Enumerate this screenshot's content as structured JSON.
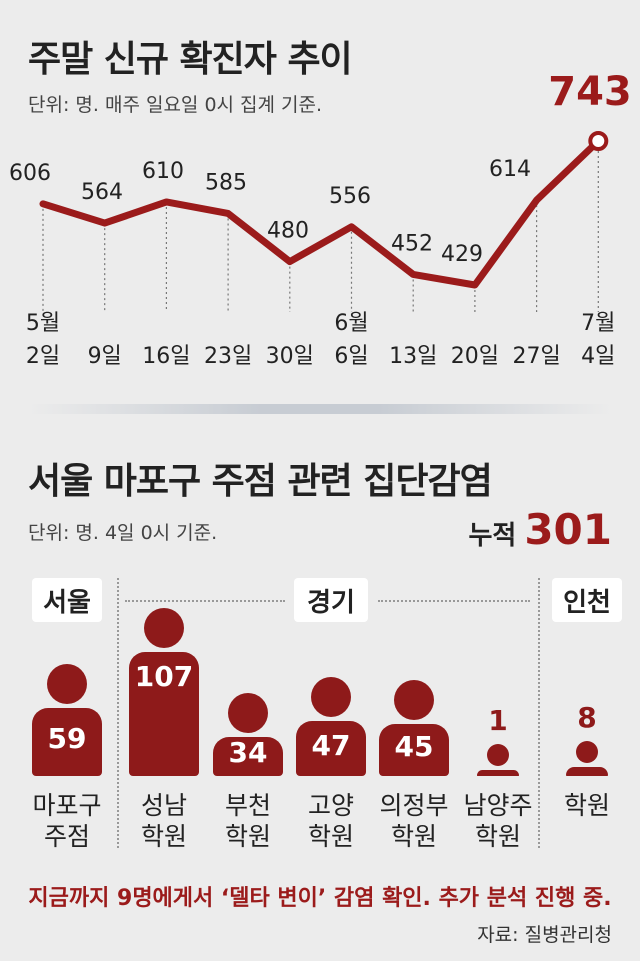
{
  "weekly": {
    "title": "주말 신규 확진자 추이",
    "unit": "단위: 명. 매주 일요일 0시 집계 기준."
  },
  "cluster": {
    "title": "서울 마포구 주점 관련 집단감염",
    "unit": "단위: 명. 4일 0시 기준.",
    "total_label": "누적",
    "total_value": "301",
    "regions": [
      "서울",
      "경기",
      "인천"
    ]
  },
  "footnote": "지금까지 9명에게서 ‘델타 변이’ 감염 확인. 추가 분석 진행 중.",
  "source": "자료: 질병관리청",
  "colors": {
    "accent": "#9b1b1b",
    "figure": "#8e1a1a",
    "background": "#ececec"
  },
  "chart_data": [
    {
      "type": "line",
      "title": "주말 신규 확진자 추이",
      "x": [
        "5월\n2일",
        "9일",
        "16일",
        "23일",
        "30일",
        "6월\n6일",
        "13일",
        "20일",
        "27일",
        "7월\n4일"
      ],
      "values": [
        606,
        564,
        610,
        585,
        480,
        556,
        452,
        429,
        614,
        743
      ],
      "highlight_last": true,
      "ylim": [
        400,
        760
      ],
      "grid": false
    },
    {
      "type": "bar",
      "title": "서울 마포구 주점 관련 집단감염",
      "categories": [
        "마포구\n주점",
        "성남\n학원",
        "부천\n학원",
        "고양\n학원",
        "의정부\n학원",
        "남양주\n학원",
        "학원"
      ],
      "values": [
        59,
        107,
        34,
        47,
        45,
        1,
        8
      ],
      "region": [
        "서울",
        "경기",
        "경기",
        "경기",
        "경기",
        "경기",
        "인천"
      ]
    }
  ]
}
